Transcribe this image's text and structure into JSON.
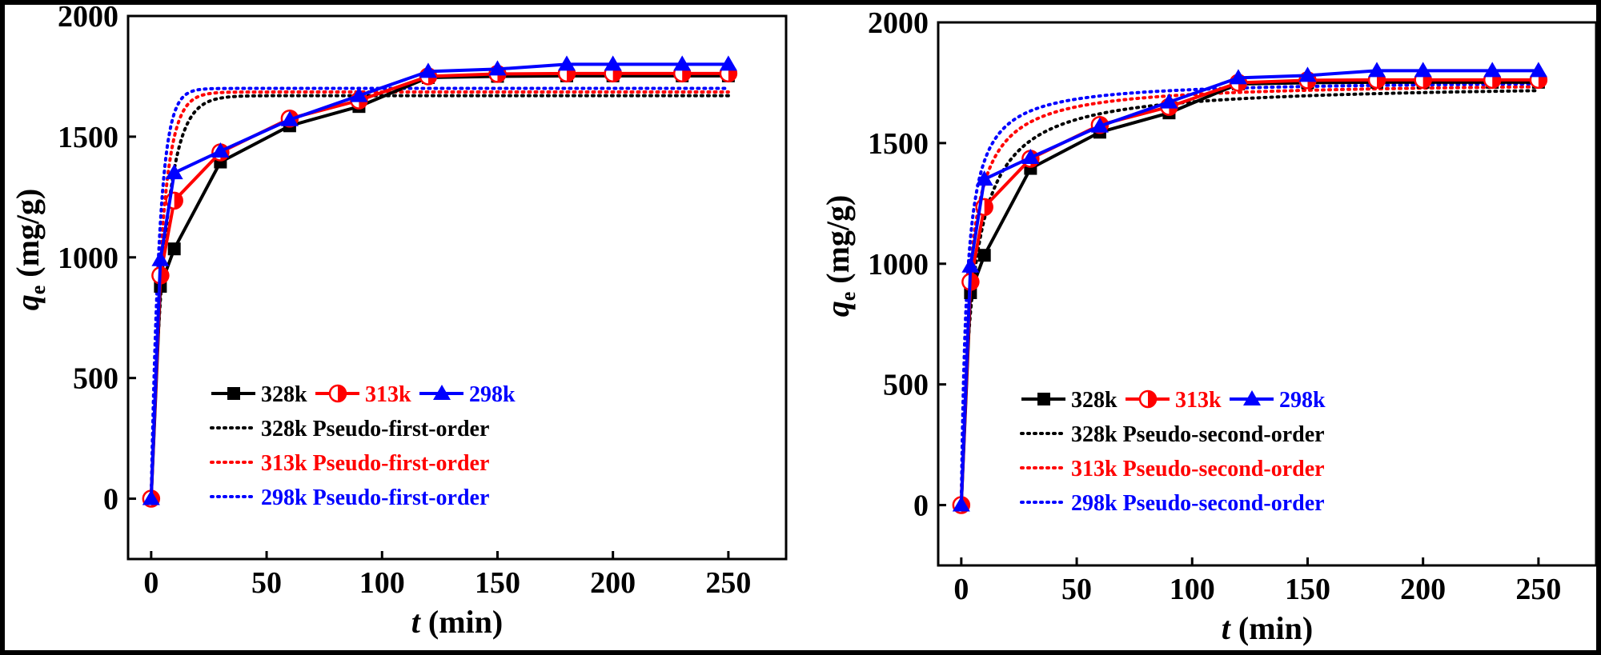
{
  "chart_data": [
    {
      "type": "line",
      "panel": "left",
      "xlabel_italic": "t",
      "xlabel_unit": " (min)",
      "ylabel_italic": "q",
      "ylabel_sub": "e",
      "ylabel_unit": " (mg/g)",
      "xlim": [
        -10,
        275
      ],
      "ylim": [
        -250,
        2000
      ],
      "xticks": [
        0,
        50,
        100,
        150,
        200,
        250
      ],
      "yticks": [
        0,
        500,
        1000,
        1500,
        2000
      ],
      "legend_position": "bottom-center",
      "series": [
        {
          "name": "328k",
          "color": "#000000",
          "marker": "square",
          "x": [
            0,
            4,
            10,
            30,
            60,
            90,
            120,
            150,
            180,
            200,
            230,
            250
          ],
          "y": [
            0,
            880,
            1035,
            1395,
            1545,
            1625,
            1745,
            1750,
            1752,
            1752,
            1752,
            1752
          ]
        },
        {
          "name": "313k",
          "color": "#ff0000",
          "marker": "half-circle",
          "x": [
            0,
            4,
            10,
            30,
            60,
            90,
            120,
            150,
            180,
            200,
            230,
            250
          ],
          "y": [
            0,
            925,
            1235,
            1435,
            1575,
            1650,
            1750,
            1760,
            1762,
            1762,
            1762,
            1762
          ]
        },
        {
          "name": "298k",
          "color": "#0000ff",
          "marker": "triangle",
          "x": [
            0,
            4,
            10,
            30,
            60,
            90,
            120,
            150,
            180,
            200,
            230,
            250
          ],
          "y": [
            0,
            990,
            1350,
            1440,
            1570,
            1670,
            1770,
            1780,
            1800,
            1800,
            1800,
            1800
          ]
        }
      ],
      "fits": [
        {
          "name": "328k Pseudo-first-order",
          "color": "#000000",
          "model": "pfo",
          "qe": 1670,
          "k": 0.17
        },
        {
          "name": "313k Pseudo-first-order",
          "color": "#ff0000",
          "model": "pfo",
          "qe": 1685,
          "k": 0.22
        },
        {
          "name": "298k Pseudo-first-order",
          "color": "#0000ff",
          "model": "pfo",
          "qe": 1700,
          "k": 0.28
        }
      ]
    },
    {
      "type": "line",
      "panel": "right",
      "xlabel_italic": "t",
      "xlabel_unit": " (min)",
      "ylabel_italic": "q",
      "ylabel_sub": "e",
      "ylabel_unit": " (mg/g)",
      "xlim": [
        -10,
        275
      ],
      "ylim": [
        -250,
        2000
      ],
      "xticks": [
        0,
        50,
        100,
        150,
        200,
        250
      ],
      "yticks": [
        0,
        500,
        1000,
        1500,
        2000
      ],
      "legend_position": "bottom-center",
      "series": [
        {
          "name": "328k",
          "color": "#000000",
          "marker": "square",
          "x": [
            0,
            4,
            10,
            30,
            60,
            90,
            120,
            150,
            180,
            200,
            230,
            250
          ],
          "y": [
            0,
            880,
            1035,
            1395,
            1545,
            1625,
            1745,
            1750,
            1752,
            1752,
            1752,
            1752
          ]
        },
        {
          "name": "313k",
          "color": "#ff0000",
          "marker": "half-circle",
          "x": [
            0,
            4,
            10,
            30,
            60,
            90,
            120,
            150,
            180,
            200,
            230,
            250
          ],
          "y": [
            0,
            925,
            1235,
            1435,
            1575,
            1650,
            1750,
            1760,
            1762,
            1762,
            1762,
            1762
          ]
        },
        {
          "name": "298k",
          "color": "#0000ff",
          "marker": "triangle",
          "x": [
            0,
            4,
            10,
            30,
            60,
            90,
            120,
            150,
            180,
            200,
            230,
            250
          ],
          "y": [
            0,
            990,
            1350,
            1440,
            1570,
            1670,
            1770,
            1780,
            1800,
            1800,
            1800,
            1800
          ]
        }
      ],
      "fits": [
        {
          "name": "328k Pseudo-second-order",
          "color": "#000000",
          "model": "pso",
          "qe": 1750,
          "k": 0.00012
        },
        {
          "name": "313k Pseudo-second-order",
          "color": "#ff0000",
          "model": "pso",
          "qe": 1755,
          "k": 0.00018
        },
        {
          "name": "298k Pseudo-second-order",
          "color": "#0000ff",
          "model": "pso",
          "qe": 1762,
          "k": 0.00024
        }
      ]
    }
  ]
}
